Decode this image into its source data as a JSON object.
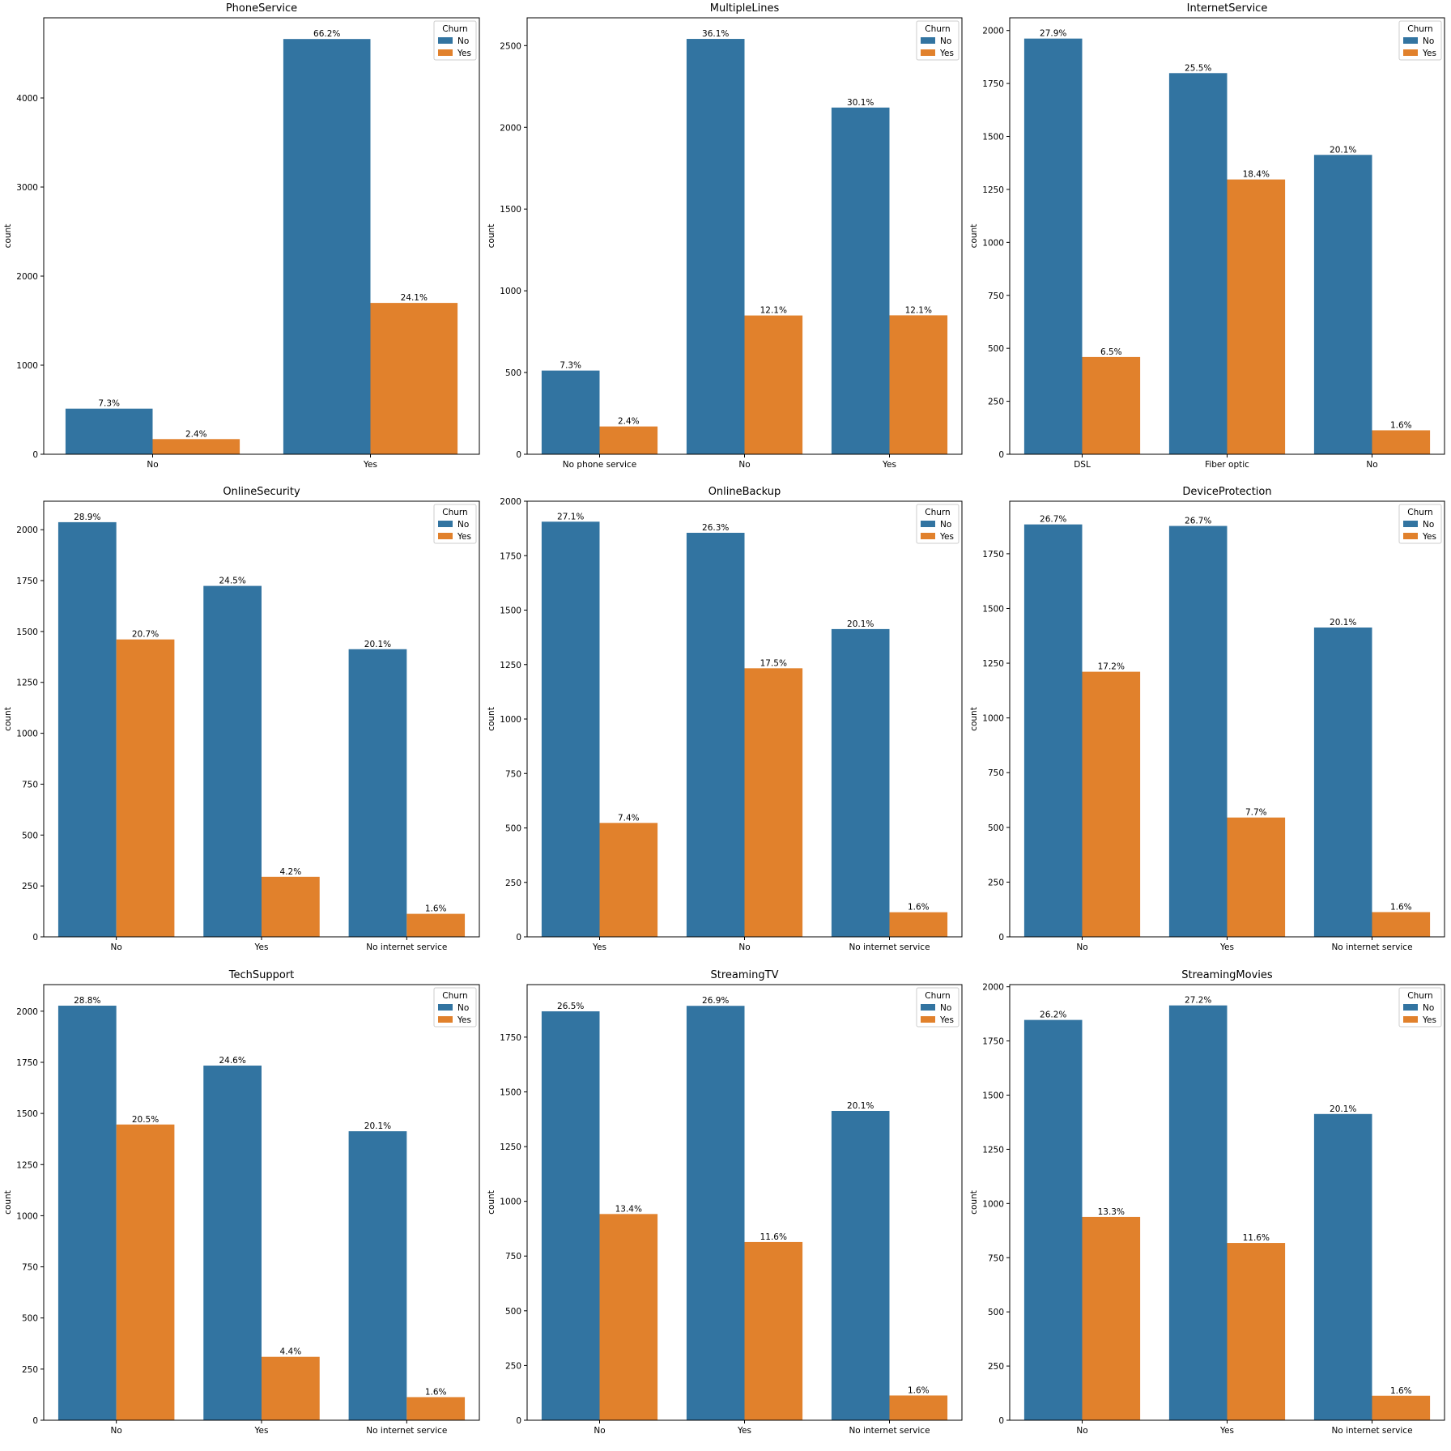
{
  "colors": {
    "no": "#3274a1",
    "yes": "#e1812c",
    "axis": "#000000",
    "legend_border": "#cccccc"
  },
  "chart_data": [
    {
      "type": "bar",
      "title": "PhoneService",
      "ylabel": "count",
      "ylim": [
        0,
        4900
      ],
      "yticks": [
        0,
        1000,
        2000,
        3000,
        4000
      ],
      "categories": [
        "No",
        "Yes"
      ],
      "legend": {
        "title": "Churn",
        "entries": [
          "No",
          "Yes"
        ],
        "position": "top-right"
      },
      "series": [
        {
          "name": "No",
          "values": [
            512,
            4662
          ],
          "labels": [
            "7.3%",
            "66.2%"
          ]
        },
        {
          "name": "Yes",
          "values": [
            170,
            1699
          ],
          "labels": [
            "2.4%",
            "24.1%"
          ]
        }
      ]
    },
    {
      "type": "bar",
      "title": "MultipleLines",
      "ylabel": "count",
      "ylim": [
        0,
        2670
      ],
      "yticks": [
        0,
        500,
        1000,
        1500,
        2000,
        2500
      ],
      "categories": [
        "No phone service",
        "No",
        "Yes"
      ],
      "legend": {
        "title": "Churn",
        "entries": [
          "No",
          "Yes"
        ],
        "position": "top-right"
      },
      "series": [
        {
          "name": "No",
          "values": [
            512,
            2541,
            2121
          ],
          "labels": [
            "7.3%",
            "36.1%",
            "30.1%"
          ]
        },
        {
          "name": "Yes",
          "values": [
            170,
            849,
            850
          ],
          "labels": [
            "2.4%",
            "12.1%",
            "12.1%"
          ]
        }
      ]
    },
    {
      "type": "bar",
      "title": "InternetService",
      "ylabel": "count",
      "ylim": [
        0,
        2060
      ],
      "yticks": [
        0,
        250,
        500,
        750,
        1000,
        1250,
        1500,
        1750,
        2000
      ],
      "categories": [
        "DSL",
        "Fiber optic",
        "No"
      ],
      "legend": {
        "title": "Churn",
        "entries": [
          "No",
          "Yes"
        ],
        "position": "top-right"
      },
      "series": [
        {
          "name": "No",
          "values": [
            1962,
            1799,
            1413
          ],
          "labels": [
            "27.9%",
            "25.5%",
            "20.1%"
          ]
        },
        {
          "name": "Yes",
          "values": [
            459,
            1297,
            113
          ],
          "labels": [
            "6.5%",
            "18.4%",
            "1.6%"
          ]
        }
      ]
    },
    {
      "type": "bar",
      "title": "OnlineSecurity",
      "ylabel": "count",
      "ylim": [
        0,
        2140
      ],
      "yticks": [
        0,
        250,
        500,
        750,
        1000,
        1250,
        1500,
        1750,
        2000
      ],
      "categories": [
        "No",
        "Yes",
        "No internet service"
      ],
      "legend": {
        "title": "Churn",
        "entries": [
          "No",
          "Yes"
        ],
        "position": "top-right"
      },
      "series": [
        {
          "name": "No",
          "values": [
            2037,
            1724,
            1413
          ],
          "labels": [
            "28.9%",
            "24.5%",
            "20.1%"
          ]
        },
        {
          "name": "Yes",
          "values": [
            1461,
            295,
            113
          ],
          "labels": [
            "20.7%",
            "4.2%",
            "1.6%"
          ]
        }
      ]
    },
    {
      "type": "bar",
      "title": "OnlineBackup",
      "ylabel": "count",
      "ylim": [
        0,
        2000
      ],
      "yticks": [
        0,
        250,
        500,
        750,
        1000,
        1250,
        1500,
        1750,
        2000
      ],
      "categories": [
        "Yes",
        "No",
        "No internet service"
      ],
      "legend": {
        "title": "Churn",
        "entries": [
          "No",
          "Yes"
        ],
        "position": "top-right"
      },
      "series": [
        {
          "name": "No",
          "values": [
            1906,
            1855,
            1413
          ],
          "labels": [
            "27.1%",
            "26.3%",
            "20.1%"
          ]
        },
        {
          "name": "Yes",
          "values": [
            523,
            1233,
            113
          ],
          "labels": [
            "7.4%",
            "17.5%",
            "1.6%"
          ]
        }
      ]
    },
    {
      "type": "bar",
      "title": "DeviceProtection",
      "ylabel": "count",
      "ylim": [
        0,
        1990
      ],
      "yticks": [
        0,
        250,
        500,
        750,
        1000,
        1250,
        1500,
        1750
      ],
      "categories": [
        "No",
        "Yes",
        "No internet service"
      ],
      "legend": {
        "title": "Churn",
        "entries": [
          "No",
          "Yes"
        ],
        "position": "top-right"
      },
      "series": [
        {
          "name": "No",
          "values": [
            1884,
            1877,
            1413
          ],
          "labels": [
            "26.7%",
            "26.7%",
            "20.1%"
          ]
        },
        {
          "name": "Yes",
          "values": [
            1211,
            545,
            113
          ],
          "labels": [
            "17.2%",
            "7.7%",
            "1.6%"
          ]
        }
      ]
    },
    {
      "type": "bar",
      "title": "TechSupport",
      "ylabel": "count",
      "ylim": [
        0,
        2130
      ],
      "yticks": [
        0,
        250,
        500,
        750,
        1000,
        1250,
        1500,
        1750,
        2000
      ],
      "categories": [
        "No",
        "Yes",
        "No internet service"
      ],
      "legend": {
        "title": "Churn",
        "entries": [
          "No",
          "Yes"
        ],
        "position": "top-right"
      },
      "series": [
        {
          "name": "No",
          "values": [
            2027,
            1734,
            1413
          ],
          "labels": [
            "28.8%",
            "24.6%",
            "20.1%"
          ]
        },
        {
          "name": "Yes",
          "values": [
            1446,
            310,
            113
          ],
          "labels": [
            "20.5%",
            "4.4%",
            "1.6%"
          ]
        }
      ]
    },
    {
      "type": "bar",
      "title": "StreamingTV",
      "ylabel": "count",
      "ylim": [
        0,
        1990
      ],
      "yticks": [
        0,
        250,
        500,
        750,
        1000,
        1250,
        1500,
        1750
      ],
      "categories": [
        "No",
        "Yes",
        "No internet service"
      ],
      "legend": {
        "title": "Churn",
        "entries": [
          "No",
          "Yes"
        ],
        "position": "top-right"
      },
      "series": [
        {
          "name": "No",
          "values": [
            1868,
            1893,
            1413
          ],
          "labels": [
            "26.5%",
            "26.9%",
            "20.1%"
          ]
        },
        {
          "name": "Yes",
          "values": [
            942,
            814,
            113
          ],
          "labels": [
            "13.4%",
            "11.6%",
            "1.6%"
          ]
        }
      ]
    },
    {
      "type": "bar",
      "title": "StreamingMovies",
      "ylabel": "count",
      "ylim": [
        0,
        2010
      ],
      "yticks": [
        0,
        250,
        500,
        750,
        1000,
        1250,
        1500,
        1750,
        2000
      ],
      "categories": [
        "No",
        "Yes",
        "No internet service"
      ],
      "legend": {
        "title": "Churn",
        "entries": [
          "No",
          "Yes"
        ],
        "position": "top-right"
      },
      "series": [
        {
          "name": "No",
          "values": [
            1847,
            1914,
            1413
          ],
          "labels": [
            "26.2%",
            "27.2%",
            "20.1%"
          ]
        },
        {
          "name": "Yes",
          "values": [
            938,
            818,
            113
          ],
          "labels": [
            "13.3%",
            "11.6%",
            "1.6%"
          ]
        }
      ]
    }
  ]
}
